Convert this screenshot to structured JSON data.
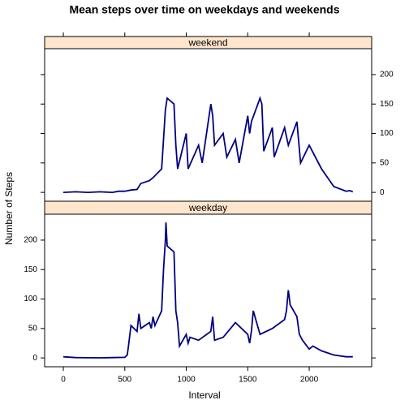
{
  "chart_data": {
    "type": "line",
    "title": "Mean steps over time on weekdays and weekends",
    "xlabel": "Interval",
    "ylabel": "Number of Steps",
    "xlim": [
      -152,
      2508
    ],
    "ylim": [
      -15,
      244
    ],
    "xticks": [
      0,
      500,
      1000,
      1500,
      2000
    ],
    "yticks": [
      0,
      50,
      100,
      150,
      200
    ],
    "color": "#000080",
    "strip_color": "#ffe5cc",
    "panels": [
      {
        "name": "weekend",
        "x": [
          0,
          100,
          200,
          300,
          400,
          450,
          500,
          550,
          600,
          630,
          700,
          730,
          800,
          815,
          830,
          845,
          900,
          915,
          930,
          1000,
          1015,
          1100,
          1130,
          1200,
          1215,
          1230,
          1300,
          1330,
          1400,
          1430,
          1500,
          1515,
          1530,
          1600,
          1615,
          1630,
          1700,
          1715,
          1800,
          1830,
          1900,
          1930,
          2000,
          2100,
          2200,
          2300,
          2330,
          2355
        ],
        "values": [
          0,
          1,
          0,
          1,
          0,
          2,
          2,
          4,
          5,
          15,
          20,
          25,
          40,
          90,
          140,
          160,
          150,
          80,
          40,
          100,
          40,
          80,
          50,
          150,
          130,
          80,
          100,
          60,
          90,
          50,
          130,
          100,
          120,
          160,
          150,
          70,
          110,
          60,
          110,
          80,
          120,
          50,
          80,
          40,
          10,
          2,
          3,
          1
        ]
      },
      {
        "name": "weekday",
        "x": [
          0,
          100,
          200,
          300,
          400,
          500,
          520,
          530,
          550,
          600,
          615,
          630,
          700,
          715,
          730,
          745,
          800,
          815,
          830,
          835,
          845,
          900,
          915,
          930,
          945,
          1000,
          1015,
          1030,
          1100,
          1200,
          1215,
          1230,
          1300,
          1400,
          1500,
          1515,
          1530,
          1545,
          1600,
          1700,
          1800,
          1815,
          1830,
          1845,
          1900,
          1920,
          1945,
          2000,
          2030,
          2100,
          2200,
          2300,
          2355
        ],
        "values": [
          2,
          0.5,
          0.3,
          0.2,
          0.5,
          1,
          5,
          20,
          55,
          45,
          75,
          50,
          60,
          50,
          70,
          55,
          80,
          150,
          200,
          230,
          190,
          180,
          80,
          60,
          20,
          40,
          25,
          35,
          30,
          45,
          70,
          30,
          35,
          60,
          40,
          25,
          45,
          80,
          40,
          50,
          65,
          80,
          115,
          90,
          70,
          40,
          30,
          15,
          20,
          12,
          5,
          2,
          2
        ]
      }
    ]
  }
}
